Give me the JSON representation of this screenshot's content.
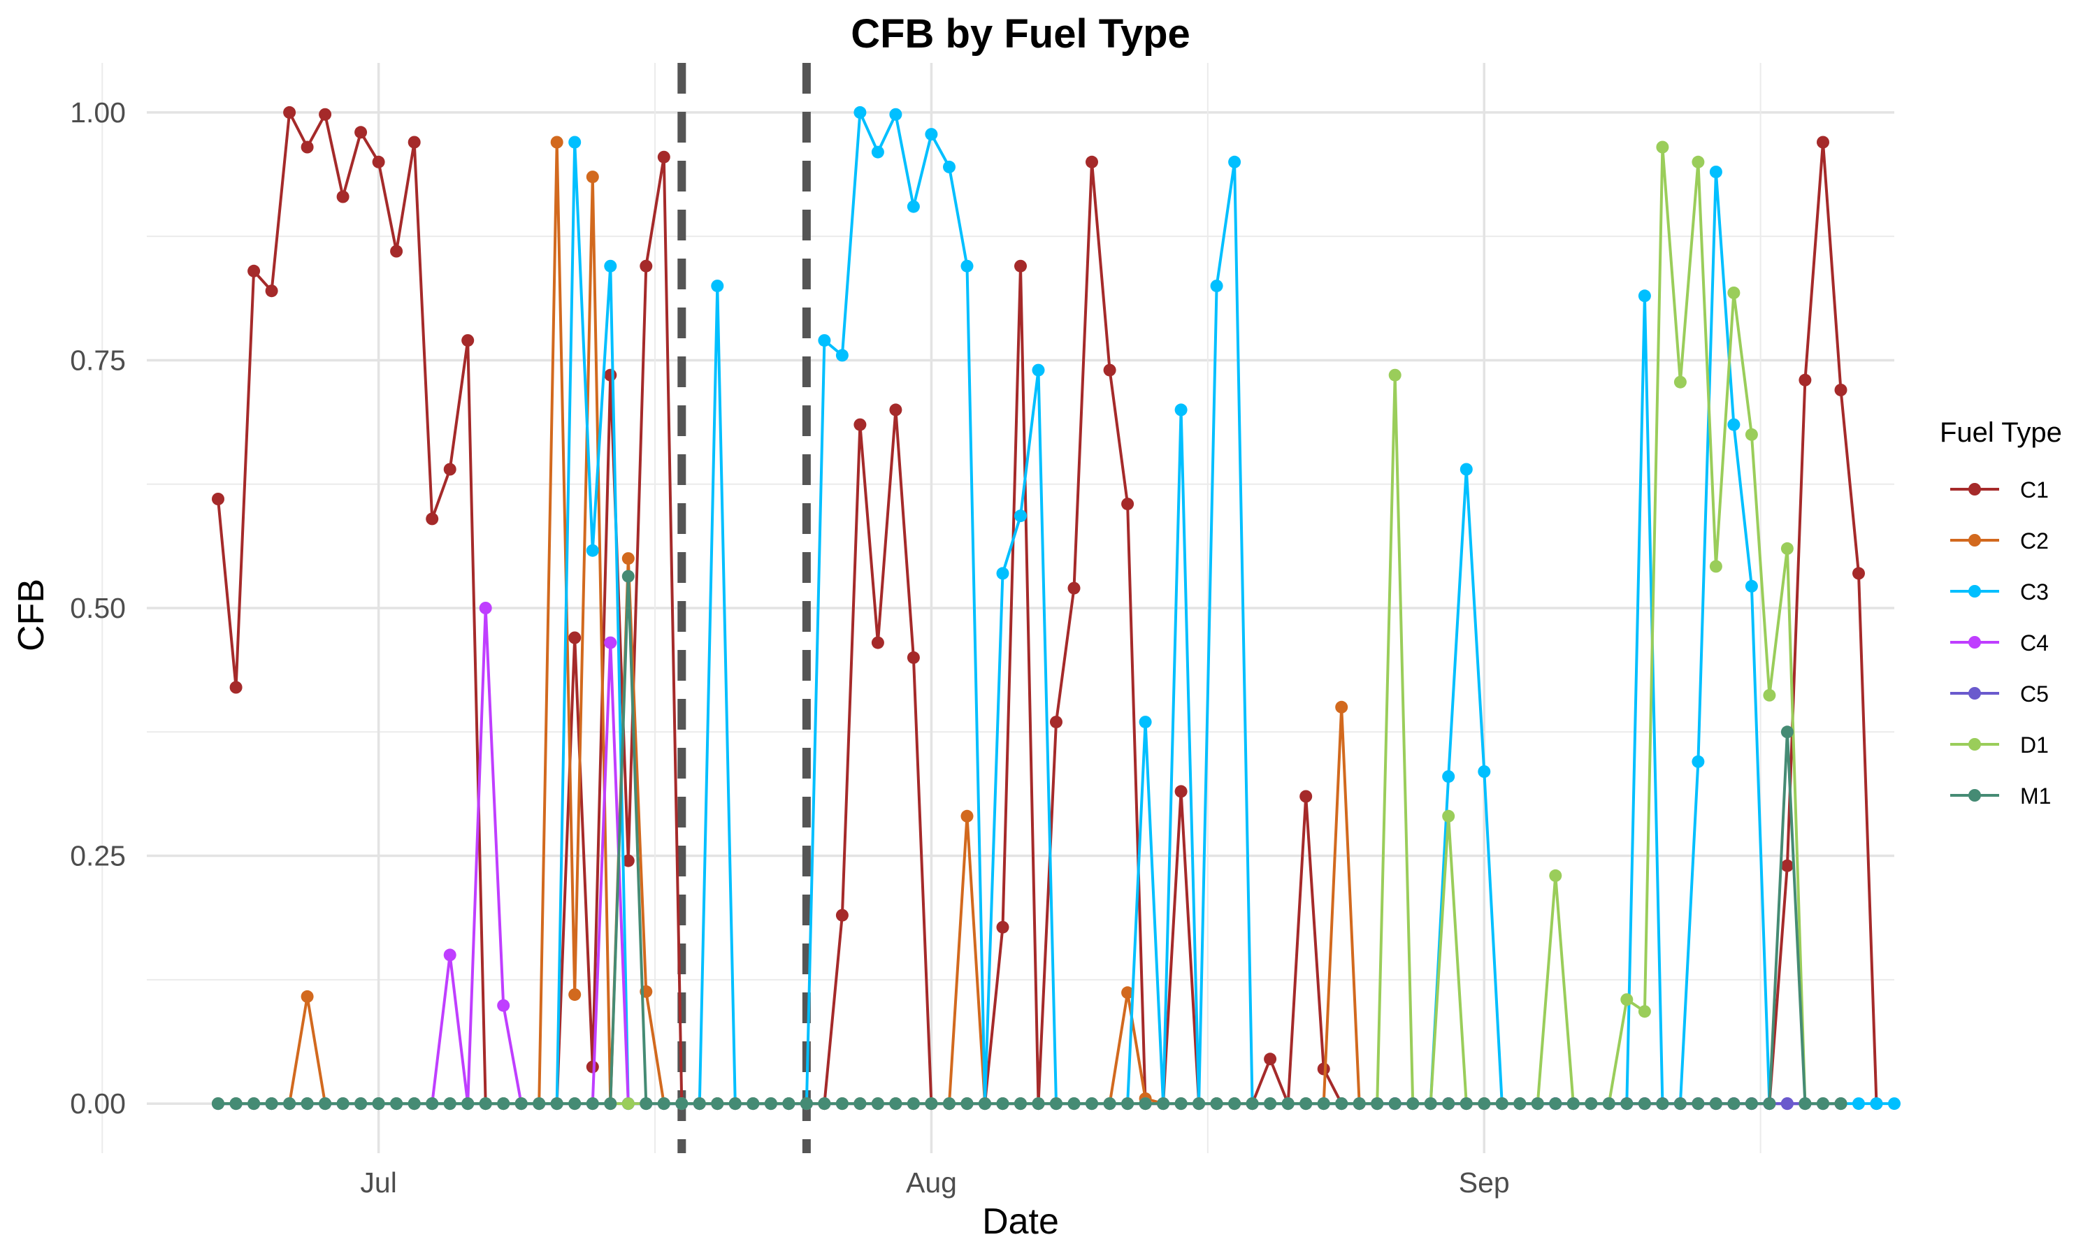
{
  "chart_data": {
    "type": "line",
    "title": "CFB by Fuel Type",
    "xlabel": "Date",
    "ylabel": "CFB",
    "x_start": "2023-06-22",
    "x_end": "2023-09-21",
    "xlim": [
      "2023-06-18",
      "2023-09-24"
    ],
    "ylim": [
      -0.05,
      1.05
    ],
    "x_ticks": [
      {
        "date": "2023-07-01",
        "label": "Jul"
      },
      {
        "date": "2023-08-01",
        "label": "Aug"
      },
      {
        "date": "2023-09-01",
        "label": "Sep"
      }
    ],
    "y_ticks": [
      {
        "value": 0,
        "label": "0.00"
      },
      {
        "value": 0.25,
        "label": "0.25"
      },
      {
        "value": 0.5,
        "label": "0.50"
      },
      {
        "value": 0.75,
        "label": "0.75"
      },
      {
        "value": 1,
        "label": "1.00"
      }
    ],
    "vlines": [
      "2023-07-18",
      "2023-07-25"
    ],
    "grid": true,
    "legend": {
      "title": "Fuel Type",
      "position": "right"
    },
    "series": [
      {
        "name": "C1",
        "color": "#A52A2A",
        "values": [
          0.61,
          0.42,
          0.84,
          0.82,
          1.0,
          0.965,
          0.998,
          0.915,
          0.98,
          0.95,
          0.86,
          0.97,
          0.59,
          0.64,
          0.77,
          0,
          0,
          0,
          0,
          0,
          0.47,
          0.037,
          0.735,
          0.245,
          0.845,
          0.955,
          0,
          0,
          0,
          0,
          0,
          0,
          0,
          0,
          0,
          0.19,
          0.685,
          0.465,
          0.7,
          0.45,
          0,
          0,
          0,
          0,
          0.178,
          0.845,
          0,
          0.385,
          0.52,
          0.95,
          0.74,
          0.605,
          0,
          0,
          0.315,
          0,
          0,
          0,
          0,
          0.045,
          0,
          0.31,
          0.035,
          0,
          0,
          0,
          0,
          0,
          0,
          0,
          0,
          0,
          0,
          0,
          0,
          0,
          0,
          0,
          0,
          0,
          0,
          0,
          0,
          0,
          0,
          0,
          0,
          0,
          0.24,
          0.73,
          0.97,
          0.72,
          0.535,
          0
        ]
      },
      {
        "name": "C2",
        "color": "#D2691E",
        "values": [
          0,
          0,
          0,
          0,
          0,
          0.108,
          0,
          0,
          0,
          0,
          0,
          0,
          0,
          0,
          0,
          0,
          0,
          0,
          0,
          0.97,
          0.11,
          0.935,
          0,
          0.55,
          0.113,
          0,
          0,
          0,
          0,
          0,
          0,
          0,
          0,
          0,
          0,
          0,
          0,
          0,
          0,
          0,
          0,
          0,
          0.29,
          0,
          0,
          0,
          0,
          0,
          0,
          0,
          0,
          0.112,
          0.005,
          0,
          0,
          0,
          0,
          0,
          0,
          0,
          0,
          0,
          0,
          0.4,
          0,
          0,
          0,
          0,
          0,
          0,
          0,
          0,
          0,
          0,
          0,
          0,
          0,
          0,
          0,
          0,
          0,
          0,
          0,
          0,
          0,
          0,
          0,
          0,
          0,
          0,
          0,
          0
        ]
      },
      {
        "name": "C3",
        "color": "#00BFFF",
        "values": [
          0,
          0,
          0,
          0,
          0,
          0,
          0,
          0,
          0,
          0,
          0,
          0,
          0,
          0,
          0,
          0,
          0,
          0,
          0,
          0,
          0.97,
          0.558,
          0.845,
          0,
          0,
          0,
          0,
          0,
          0.825,
          0,
          0,
          0,
          0,
          0,
          0.77,
          0.755,
          1.0,
          0.96,
          0.998,
          0.905,
          0.978,
          0.945,
          0.845,
          0,
          0.535,
          0.593,
          0.74,
          0,
          0,
          0,
          0,
          0,
          0.385,
          0,
          0.7,
          0,
          0.825,
          0.95,
          0,
          0,
          0,
          0,
          0,
          0,
          0,
          0,
          0,
          0,
          0,
          0.33,
          0.64,
          0.335,
          0,
          0,
          0,
          0,
          0,
          0,
          0,
          0,
          0.815,
          0,
          0,
          0.345,
          0.94,
          0.685,
          0.522,
          0,
          0,
          0,
          0,
          0,
          0,
          0,
          0
        ]
      },
      {
        "name": "C4",
        "color": "#BF3EFF",
        "values": [
          0,
          0,
          0,
          0,
          0,
          0,
          0,
          0,
          0,
          0,
          0,
          0,
          0,
          0.15,
          0,
          0.5,
          0.099,
          0,
          0,
          0,
          0,
          0,
          0.465,
          0,
          0,
          0,
          0,
          0,
          0,
          0,
          0,
          0,
          0,
          0,
          0,
          0,
          0,
          0,
          0,
          0,
          0,
          0,
          0,
          0,
          0,
          0,
          0,
          0,
          0,
          0,
          0,
          0,
          0,
          0,
          0,
          0,
          0,
          0,
          0,
          0,
          0,
          0,
          0,
          0,
          0,
          0,
          0,
          0,
          0,
          0,
          0,
          0,
          0,
          0,
          0,
          0,
          0,
          0,
          0,
          0,
          0,
          0,
          0,
          0,
          0,
          0,
          0,
          0,
          0,
          0,
          0,
          0
        ]
      },
      {
        "name": "C5",
        "color": "#6A5ACD",
        "values": [
          0,
          0,
          0,
          0,
          0,
          0,
          0,
          0,
          0,
          0,
          0,
          0,
          0,
          0,
          0,
          0,
          0,
          0,
          0,
          0,
          0,
          0,
          0,
          0,
          0,
          0,
          0,
          0,
          0,
          0,
          0,
          0,
          0,
          0,
          0,
          0,
          0,
          0,
          0,
          0,
          0,
          0,
          0,
          0,
          0,
          0,
          0,
          0,
          0,
          0,
          0,
          0,
          0,
          0,
          0,
          0,
          0,
          0,
          0,
          0,
          0,
          0,
          0,
          0,
          0,
          0,
          0,
          0,
          0,
          0,
          0,
          0,
          0,
          0,
          0,
          0,
          0,
          0,
          0,
          0,
          0,
          0,
          0,
          0,
          0,
          0,
          0,
          0,
          0,
          0,
          0,
          0
        ]
      },
      {
        "name": "D1",
        "color": "#9ACD5A",
        "values": [
          0,
          0,
          0,
          0,
          0,
          0,
          0,
          0,
          0,
          0,
          0,
          0,
          0,
          0,
          0,
          0,
          0,
          0,
          0,
          0,
          0,
          0,
          0,
          0,
          0,
          0,
          0,
          0,
          0,
          0,
          0,
          0,
          0,
          0,
          0,
          0,
          0,
          0,
          0,
          0,
          0,
          0,
          0,
          0,
          0,
          0,
          0,
          0,
          0,
          0,
          0,
          0,
          0,
          0,
          0,
          0,
          0,
          0,
          0,
          0,
          0,
          0,
          0,
          0,
          0,
          0,
          0.735,
          0,
          0,
          0.29,
          0,
          0,
          0,
          0,
          0,
          0.23,
          0,
          0,
          0,
          0.105,
          0.093,
          0.965,
          0.728,
          0.95,
          0.542,
          0.818,
          0.675,
          0.412,
          0.56,
          0,
          0,
          0
        ]
      },
      {
        "name": "M1",
        "color": "#458B74",
        "values": [
          0,
          0,
          0,
          0,
          0,
          0,
          0,
          0,
          0,
          0,
          0,
          0,
          0,
          0,
          0,
          0,
          0,
          0,
          0,
          0,
          0,
          0,
          0,
          0.532,
          0,
          0,
          0,
          0,
          0,
          0,
          0,
          0,
          0,
          0,
          0,
          0,
          0,
          0,
          0,
          0,
          0,
          0,
          0,
          0,
          0,
          0,
          0,
          0,
          0,
          0,
          0,
          0,
          0,
          0,
          0,
          0,
          0,
          0,
          0,
          0,
          0,
          0,
          0,
          0,
          0,
          0,
          0,
          0,
          0,
          0,
          0,
          0,
          0,
          0,
          0,
          0,
          0,
          0,
          0,
          0,
          0,
          0,
          0,
          0,
          0,
          0,
          0,
          0,
          0.375,
          0,
          0,
          0
        ]
      }
    ]
  }
}
